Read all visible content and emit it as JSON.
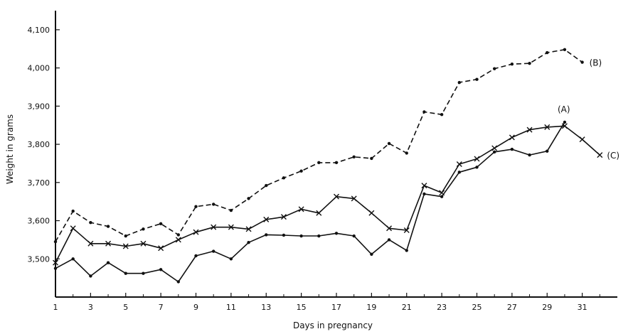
{
  "chart_data": {
    "type": "line",
    "title": "",
    "xlabel": "Days in pregnancy",
    "ylabel": "Weight in grams",
    "xlim": [
      1,
      33
    ],
    "ylim": [
      3400,
      4150
    ],
    "x_ticks": [
      1,
      3,
      5,
      7,
      9,
      11,
      13,
      15,
      17,
      19,
      21,
      23,
      25,
      27,
      29,
      31
    ],
    "x_tick_labels": [
      "1",
      "3",
      "5",
      "7",
      "9",
      "11",
      "13",
      "15",
      "17",
      "19",
      "21",
      "23",
      "25",
      "27",
      "29",
      "31"
    ],
    "y_ticks": [
      3500,
      3600,
      3700,
      3800,
      3900,
      4000,
      4100
    ],
    "y_tick_labels": [
      "3,500",
      "3,600",
      "3,700",
      "3,800",
      "3,900",
      "4,000",
      "4,100"
    ],
    "grid": false,
    "legend": "none",
    "series": [
      {
        "name": "(B)",
        "style": "dashed",
        "marker": "dot",
        "x": [
          1,
          2,
          3,
          4,
          5,
          6,
          7,
          8,
          9,
          10,
          11,
          12,
          13,
          14,
          15,
          16,
          17,
          18,
          19,
          20,
          21,
          22,
          23,
          24,
          25,
          26,
          27,
          28,
          29,
          30,
          31
        ],
        "values": [
          3545,
          3625,
          3595,
          3585,
          3560,
          3578,
          3592,
          3563,
          3637,
          3643,
          3627,
          3658,
          3692,
          3712,
          3730,
          3752,
          3752,
          3767,
          3763,
          3802,
          3777,
          3885,
          3878,
          3962,
          3970,
          3998,
          4010,
          4012,
          4040,
          4048,
          4015
        ]
      },
      {
        "name": "(A)",
        "style": "solid",
        "marker": "dot",
        "x": [
          1,
          2,
          3,
          4,
          5,
          6,
          7,
          8,
          9,
          10,
          11,
          12,
          13,
          14,
          15,
          16,
          17,
          18,
          19,
          20,
          21,
          22,
          23,
          24,
          25,
          26,
          27,
          28,
          29,
          30
        ],
        "values": [
          3475,
          3500,
          3455,
          3490,
          3462,
          3462,
          3472,
          3440,
          3508,
          3520,
          3500,
          3543,
          3563,
          3562,
          3560,
          3560,
          3567,
          3560,
          3512,
          3550,
          3522,
          3670,
          3663,
          3727,
          3740,
          3780,
          3787,
          3772,
          3782,
          3858
        ]
      },
      {
        "name": "(C)",
        "style": "solid",
        "marker": "x",
        "x": [
          1,
          2,
          3,
          4,
          5,
          6,
          7,
          8,
          9,
          10,
          11,
          12,
          13,
          14,
          15,
          16,
          17,
          18,
          19,
          20,
          21,
          22,
          23,
          24,
          25,
          26,
          27,
          28,
          29,
          30,
          31,
          32
        ],
        "values": [
          3490,
          3580,
          3540,
          3540,
          3533,
          3540,
          3528,
          3550,
          3570,
          3583,
          3583,
          3578,
          3603,
          3610,
          3630,
          3620,
          3663,
          3658,
          3620,
          3580,
          3575,
          3692,
          3673,
          3748,
          3762,
          3790,
          3818,
          3838,
          3845,
          3848,
          3813,
          3772
        ]
      }
    ]
  }
}
